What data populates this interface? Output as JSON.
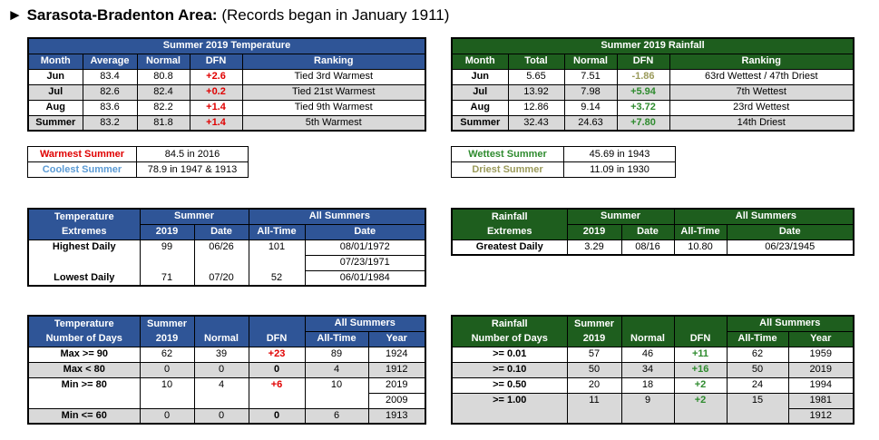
{
  "header": {
    "arrow": "►",
    "title_bold": "Sarasota-Bradenton Area:",
    "title_rest": " (Records began in January 1911)"
  },
  "temp": {
    "title": "Summer 2019 Temperature",
    "cols": [
      "Month",
      "Average",
      "Normal",
      "DFN",
      "Ranking"
    ],
    "rows": [
      [
        "Jun",
        "83.4",
        "80.8",
        "+2.6",
        "Tied 3rd Warmest"
      ],
      [
        "Jul",
        "82.6",
        "82.4",
        "+0.2",
        "Tied 21st Warmest"
      ],
      [
        "Aug",
        "83.6",
        "82.2",
        "+1.4",
        "Tied 9th Warmest"
      ],
      [
        "Summer",
        "83.2",
        "81.8",
        "+1.4",
        "5th Warmest"
      ]
    ]
  },
  "rain": {
    "title": "Summer 2019 Rainfall",
    "cols": [
      "Month",
      "Total",
      "Normal",
      "DFN",
      "Ranking"
    ],
    "rows": [
      [
        "Jun",
        "5.65",
        "7.51",
        "-1.86",
        "63rd Wettest / 47th Driest"
      ],
      [
        "Jul",
        "13.92",
        "7.98",
        "+5.94",
        "7th Wettest"
      ],
      [
        "Aug",
        "12.86",
        "9.14",
        "+3.72",
        "23rd Wettest"
      ],
      [
        "Summer",
        "32.43",
        "24.63",
        "+7.80",
        "14th Driest"
      ]
    ]
  },
  "temp_records": {
    "warm_label": "Warmest Summer",
    "warm_value": "84.5 in 2016",
    "cool_label": "Coolest Summer",
    "cool_value": "78.9 in 1947 & 1913"
  },
  "rain_records": {
    "wet_label": "Wettest Summer",
    "wet_value": "45.69 in 1943",
    "dry_label": "Driest Summer",
    "dry_value": "11.09 in 1930"
  },
  "temp_ext": {
    "h1": "Temperature",
    "h2": "Extremes",
    "summer": "Summer",
    "yr": "2019",
    "date": "Date",
    "alltime": "All-Time",
    "allsummers": "All Summers",
    "date2": "Date",
    "high_label": "Highest Daily",
    "high_val": "99",
    "high_date": "06/26",
    "high_at": "101",
    "high_at_date1": "08/01/1972",
    "high_at_date2": "07/23/1971",
    "low_label": "Lowest Daily",
    "low_val": "71",
    "low_date": "07/20",
    "low_at": "52",
    "low_at_date": "06/01/1984"
  },
  "rain_ext": {
    "h1": "Rainfall",
    "h2": "Extremes",
    "summer": "Summer",
    "yr": "2019",
    "date": "Date",
    "alltime": "All-Time",
    "allsummers": "All Summers",
    "date2": "Date",
    "label": "Greatest Daily",
    "val": "3.29",
    "vdate": "08/16",
    "at": "10.80",
    "at_date": "06/23/1945"
  },
  "temp_days": {
    "h1": "Temperature",
    "h2": "Number of Days",
    "summer": "Summer",
    "yr": "2019",
    "normal": "Normal",
    "dfn": "DFN",
    "allsummers": "All Summers",
    "alltime": "All-Time",
    "year": "Year",
    "r1": [
      "Max >= 90",
      "62",
      "39",
      "+23",
      "89",
      "1924"
    ],
    "r2": [
      "Max < 80",
      "0",
      "0",
      "0",
      "4",
      "1912"
    ],
    "r3": [
      "Min >= 80",
      "10",
      "4",
      "+6",
      "10",
      "2019"
    ],
    "r3b": "2009",
    "r4": [
      "Min <= 60",
      "0",
      "0",
      "0",
      "6",
      "1913"
    ]
  },
  "rain_days": {
    "h1": "Rainfall",
    "h2": "Number of Days",
    "summer": "Summer",
    "yr": "2019",
    "normal": "Normal",
    "dfn": "DFN",
    "allsummers": "All Summers",
    "alltime": "All-Time",
    "year": "Year",
    "r1": [
      ">= 0.01",
      "57",
      "46",
      "+11",
      "62",
      "1959"
    ],
    "r2": [
      ">= 0.10",
      "50",
      "34",
      "+16",
      "50",
      "2019"
    ],
    "r3": [
      ">= 0.50",
      "20",
      "18",
      "+2",
      "24",
      "1994"
    ],
    "r4": [
      ">= 1.00",
      "11",
      "9",
      "+2",
      "15",
      "1981"
    ],
    "r4b": "1912"
  }
}
